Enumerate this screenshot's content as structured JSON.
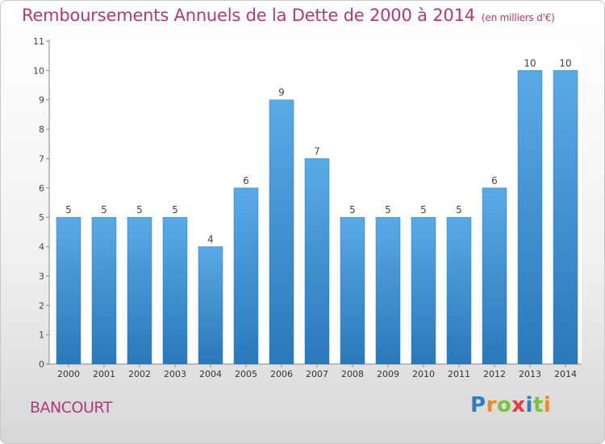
{
  "chart_data": {
    "type": "bar",
    "title": "Remboursements Annuels de la Dette de 2000 à 2014",
    "unit": "(en milliers d'€)",
    "categories": [
      "2000",
      "2001",
      "2002",
      "2003",
      "2004",
      "2005",
      "2006",
      "2007",
      "2008",
      "2009",
      "2010",
      "2011",
      "2012",
      "2013",
      "2014"
    ],
    "values": [
      5,
      5,
      5,
      5,
      4,
      6,
      9,
      7,
      5,
      5,
      5,
      5,
      6,
      10,
      10
    ],
    "ylim": [
      0,
      11
    ],
    "yticks": [
      0,
      1,
      2,
      3,
      4,
      5,
      6,
      7,
      8,
      9,
      10,
      11
    ],
    "grid": false,
    "bar_color": "#4a9ad8"
  },
  "place": "BANCOURT",
  "logo": {
    "letters": [
      "P",
      "r",
      "o",
      "x",
      "i",
      "t",
      "i"
    ],
    "colors": [
      "#2f7fc0",
      "#e98a2c",
      "#7fbf3f",
      "#e23c3c",
      "#2f7fc0",
      "#7fbf3f",
      "#e98a2c"
    ]
  }
}
